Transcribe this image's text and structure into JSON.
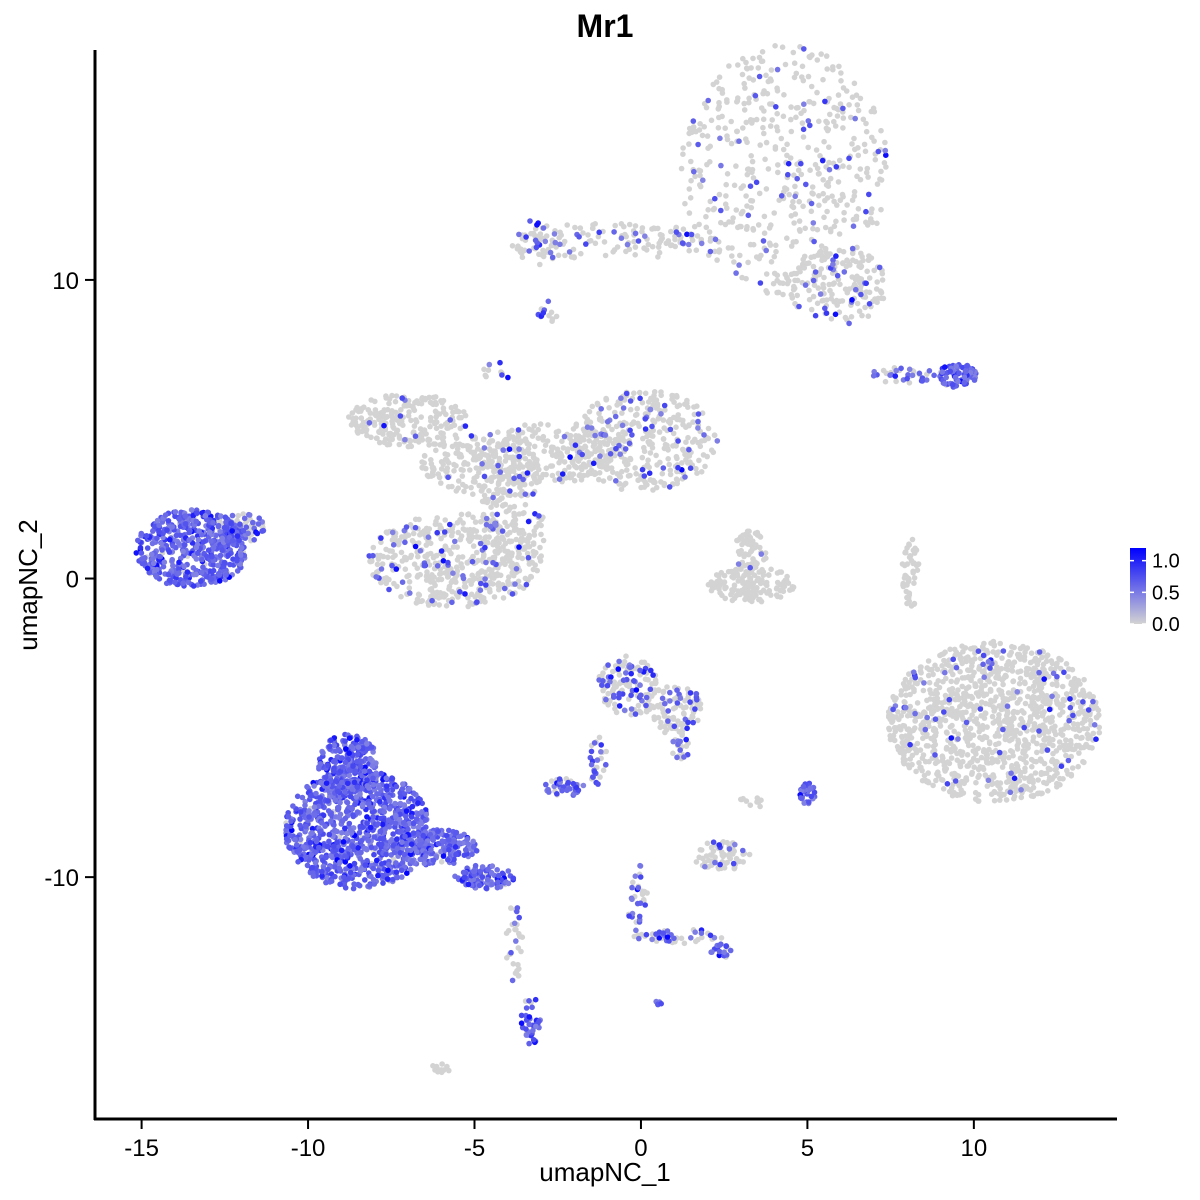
{
  "chart_data": {
    "type": "scatter",
    "title": "Mr1",
    "xlabel": "umapNC_1",
    "ylabel": "umapNC_2",
    "xlim": [
      -16.4,
      14.3
    ],
    "ylim": [
      -18.1,
      17.7
    ],
    "xticks": [
      -15,
      -10,
      -5,
      0,
      5,
      10
    ],
    "xtick_labels": [
      "-15",
      "-10",
      "-5",
      "0",
      "5",
      "10"
    ],
    "yticks": [
      -10,
      0,
      10
    ],
    "ytick_labels": [
      "-10",
      "0",
      "10"
    ],
    "grid": false,
    "legend_position": "right",
    "color_scale": {
      "low_color": "#d3d3d3",
      "high_color": "#0000ff",
      "min": 0.0,
      "max": 1.2,
      "ticks": [
        0.0,
        0.5,
        1.0
      ],
      "tick_labels": [
        "0.0",
        "0.5",
        "1.0"
      ]
    },
    "clusters": [
      {
        "cx": 4.3,
        "cy": 13.7,
        "rx": 3.1,
        "ry": 4.2,
        "n": 520,
        "expr_frac": 0.12
      },
      {
        "cx": -0.9,
        "cy": 11.3,
        "rx": 3.1,
        "ry": 0.6,
        "n": 130,
        "expr_frac": 0.18
      },
      {
        "cx": -3.1,
        "cy": 11.3,
        "rx": 0.7,
        "ry": 0.8,
        "n": 40,
        "expr_frac": 0.35
      },
      {
        "cx": 5.9,
        "cy": 9.8,
        "rx": 1.5,
        "ry": 1.3,
        "n": 160,
        "expr_frac": 0.12
      },
      {
        "cx": -2.8,
        "cy": 8.8,
        "rx": 0.3,
        "ry": 0.5,
        "n": 12,
        "expr_frac": 0.4
      },
      {
        "cx": 9.5,
        "cy": 6.8,
        "rx": 0.6,
        "ry": 0.4,
        "n": 80,
        "expr_frac": 0.95
      },
      {
        "cx": 7.9,
        "cy": 6.8,
        "rx": 1.0,
        "ry": 0.3,
        "n": 35,
        "expr_frac": 0.5
      },
      {
        "cx": -7.0,
        "cy": 5.3,
        "rx": 1.8,
        "ry": 0.9,
        "n": 230,
        "expr_frac": 0.05
      },
      {
        "cx": -4.8,
        "cy": 3.8,
        "rx": 1.8,
        "ry": 1.0,
        "n": 200,
        "expr_frac": 0.04
      },
      {
        "cx": -3.9,
        "cy": 1.6,
        "rx": 1.0,
        "ry": 2.0,
        "n": 150,
        "expr_frac": 0.1
      },
      {
        "cx": -2.8,
        "cy": 4.2,
        "rx": 2.3,
        "ry": 1.0,
        "n": 240,
        "expr_frac": 0.06
      },
      {
        "cx": 0.1,
        "cy": 4.6,
        "rx": 2.2,
        "ry": 1.7,
        "n": 380,
        "expr_frac": 0.12
      },
      {
        "cx": -5.6,
        "cy": 0.6,
        "rx": 2.6,
        "ry": 1.6,
        "n": 460,
        "expr_frac": 0.12
      },
      {
        "cx": -4.4,
        "cy": 6.9,
        "rx": 0.5,
        "ry": 0.4,
        "n": 10,
        "expr_frac": 0.3
      },
      {
        "cx": -13.5,
        "cy": 1.0,
        "rx": 1.7,
        "ry": 1.3,
        "n": 520,
        "expr_frac": 0.95
      },
      {
        "cx": -12.1,
        "cy": 1.7,
        "rx": 0.9,
        "ry": 0.5,
        "n": 80,
        "expr_frac": 0.55
      },
      {
        "cx": 3.3,
        "cy": -0.2,
        "rx": 1.3,
        "ry": 0.6,
        "n": 150,
        "expr_frac": 0.0
      },
      {
        "cx": 3.3,
        "cy": 0.9,
        "rx": 0.5,
        "ry": 0.7,
        "n": 60,
        "expr_frac": 0.04
      },
      {
        "cx": 8.1,
        "cy": 0.2,
        "rx": 0.25,
        "ry": 1.2,
        "n": 50,
        "expr_frac": 0.0
      },
      {
        "cx": 10.6,
        "cy": -4.8,
        "rx": 3.2,
        "ry": 2.7,
        "n": 1200,
        "expr_frac": 0.05
      },
      {
        "cx": -0.4,
        "cy": -3.6,
        "rx": 0.9,
        "ry": 1.0,
        "n": 130,
        "expr_frac": 0.35
      },
      {
        "cx": 1.0,
        "cy": -4.4,
        "rx": 0.9,
        "ry": 0.8,
        "n": 110,
        "expr_frac": 0.22
      },
      {
        "cx": 1.2,
        "cy": -5.6,
        "rx": 0.3,
        "ry": 0.5,
        "n": 22,
        "expr_frac": 0.3
      },
      {
        "cx": -1.3,
        "cy": -6.1,
        "rx": 0.4,
        "ry": 0.8,
        "n": 28,
        "expr_frac": 0.55
      },
      {
        "cx": -2.3,
        "cy": -7.0,
        "rx": 0.6,
        "ry": 0.3,
        "n": 40,
        "expr_frac": 0.85
      },
      {
        "cx": 5.0,
        "cy": -7.2,
        "rx": 0.25,
        "ry": 0.35,
        "n": 30,
        "expr_frac": 1.0
      },
      {
        "cx": 2.4,
        "cy": -9.3,
        "rx": 0.9,
        "ry": 0.5,
        "n": 70,
        "expr_frac": 0.18
      },
      {
        "cx": 3.3,
        "cy": -7.5,
        "rx": 0.4,
        "ry": 0.2,
        "n": 10,
        "expr_frac": 0.0
      },
      {
        "cx": -8.5,
        "cy": -8.4,
        "rx": 2.2,
        "ry": 2.0,
        "n": 950,
        "expr_frac": 0.97
      },
      {
        "cx": -8.8,
        "cy": -6.2,
        "rx": 0.9,
        "ry": 1.0,
        "n": 220,
        "expr_frac": 0.97
      },
      {
        "cx": -6.2,
        "cy": -9.0,
        "rx": 1.3,
        "ry": 0.6,
        "n": 180,
        "expr_frac": 0.95
      },
      {
        "cx": -4.7,
        "cy": -10.0,
        "rx": 0.9,
        "ry": 0.4,
        "n": 100,
        "expr_frac": 0.9
      },
      {
        "cx": -3.8,
        "cy": -12.2,
        "rx": 0.25,
        "ry": 1.3,
        "n": 30,
        "expr_frac": 0.35
      },
      {
        "cx": -3.3,
        "cy": -14.8,
        "rx": 0.3,
        "ry": 0.8,
        "n": 40,
        "expr_frac": 0.85
      },
      {
        "cx": -0.1,
        "cy": -10.8,
        "rx": 0.3,
        "ry": 1.3,
        "n": 35,
        "expr_frac": 0.5
      },
      {
        "cx": 1.3,
        "cy": -12.0,
        "rx": 1.2,
        "ry": 0.25,
        "n": 40,
        "expr_frac": 0.55
      },
      {
        "cx": 2.4,
        "cy": -12.5,
        "rx": 0.3,
        "ry": 0.3,
        "n": 18,
        "expr_frac": 0.9
      },
      {
        "cx": -6.0,
        "cy": -16.4,
        "rx": 0.3,
        "ry": 0.15,
        "n": 12,
        "expr_frac": 0.0
      },
      {
        "cx": 0.6,
        "cy": -14.2,
        "rx": 0.15,
        "ry": 0.1,
        "n": 5,
        "expr_frac": 0.8
      }
    ]
  }
}
